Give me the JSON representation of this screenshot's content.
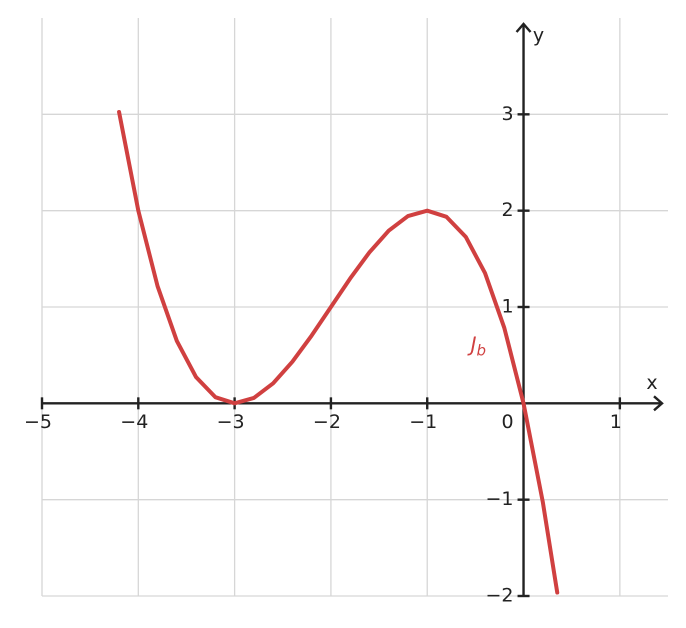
{
  "chart_data": {
    "type": "line",
    "x_label": "x",
    "y_label": "y",
    "x": [
      -4.2,
      -4.0,
      -3.8,
      -3.6,
      -3.4,
      -3.2,
      -3.0,
      -2.8,
      -2.6,
      -2.4,
      -2.2,
      -2.0,
      -1.8,
      -1.6,
      -1.4,
      -1.2,
      -1.0,
      -0.8,
      -0.6,
      -0.4,
      -0.2,
      0,
      0.2,
      0.35
    ],
    "series": [
      {
        "name": "J",
        "name_subscript": "b",
        "color": "#d04040",
        "values": [
          3.024,
          2.0,
          1.216,
          0.648,
          0.272,
          0.064,
          0,
          0.056,
          0.208,
          0.432,
          0.704,
          1.0,
          1.296,
          1.568,
          1.792,
          1.944,
          2.0,
          1.936,
          1.728,
          1.352,
          0.784,
          0,
          -1.024,
          -1.964
        ]
      }
    ],
    "xlim": [
      -5,
      1.5
    ],
    "ylim": [
      -2,
      4
    ],
    "xticks": [
      {
        "value": -5,
        "label": "−5"
      },
      {
        "value": -4,
        "label": "−4"
      },
      {
        "value": -3,
        "label": "−3"
      },
      {
        "value": -2,
        "label": "−2"
      },
      {
        "value": -1,
        "label": "−1"
      },
      0,
      1
    ],
    "yticks": [
      {
        "value": -2,
        "label": "−2"
      },
      {
        "value": -1,
        "label": "−1"
      },
      1,
      2,
      3
    ],
    "grid": true
  }
}
